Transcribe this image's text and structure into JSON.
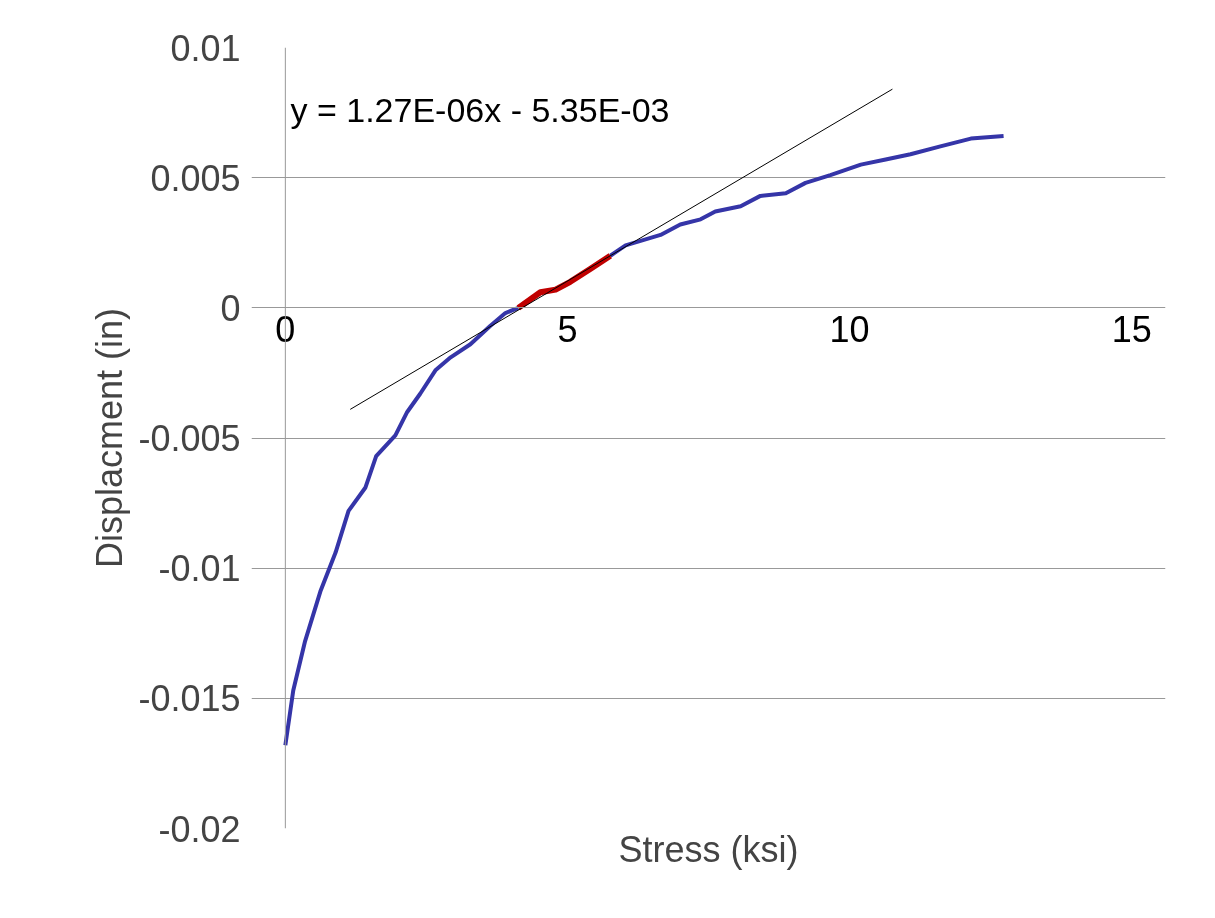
{
  "chart_data": {
    "type": "line",
    "xlabel": "Stress (ksi)",
    "ylabel": "Displacment (in)",
    "xlim": [
      0,
      15
    ],
    "xticks": [
      0,
      5,
      10,
      15
    ],
    "ylim": [
      -0.02,
      0.01
    ],
    "yticks": [
      {
        "value": 0.01,
        "label": "0.01"
      },
      {
        "value": 0.005,
        "label": "0.005"
      },
      {
        "value": 0,
        "label": "0"
      },
      {
        "value": -0.005,
        "label": "-0.005"
      },
      {
        "value": -0.01,
        "label": "-0.01"
      },
      {
        "value": -0.015,
        "label": "-0.015"
      },
      {
        "value": -0.02,
        "label": "-0.02"
      }
    ],
    "grid": "y",
    "marker": "none",
    "line_style": "solid",
    "annotations": [
      "y = 1.27E-06x - 5.35E-03"
    ],
    "series": [
      {
        "color": "#3535a8",
        "x": [
          0,
          0.14,
          0.35,
          0.62,
          0.89,
          1.12,
          1.42,
          1.61,
          1.95,
          2.16,
          2.39,
          2.66,
          2.93,
          3.28,
          3.63,
          3.9,
          4.13,
          4.52,
          5.76,
          6.03,
          6.65,
          7.0,
          7.36,
          7.62,
          8.07,
          8.42,
          8.87,
          9.22,
          9.66,
          10.2,
          10.64,
          11.08,
          11.61,
          12.15,
          12.73
        ],
        "values": [
          -0.0168,
          -0.0147,
          -0.0128,
          -0.0109,
          -0.0094,
          -0.0078,
          -0.0069,
          -0.0057,
          -0.0049,
          -0.004,
          -0.0033,
          -0.0024,
          -0.0019,
          -0.0014,
          -0.0007,
          -0.0002,
          0,
          null,
          0.002,
          0.0024,
          0.0028,
          0.0032,
          0.0034,
          0.0037,
          0.0039,
          0.0043,
          0.0044,
          0.0048,
          0.0051,
          0.0055,
          0.0057,
          0.0059,
          0.0062,
          0.0065,
          0.0066
        ]
      },
      {
        "color": "#c00000",
        "x": [
          4.13,
          4.52,
          4.79,
          5.05,
          5.41,
          5.76
        ],
        "values": [
          0,
          0.0006,
          0.0007,
          0.001,
          0.0015,
          0.002
        ]
      },
      {
        "type": "line",
        "color": "#000000",
        "x": [
          1.15,
          10.76
        ],
        "values": [
          -0.0039,
          0.0084
        ]
      }
    ]
  }
}
